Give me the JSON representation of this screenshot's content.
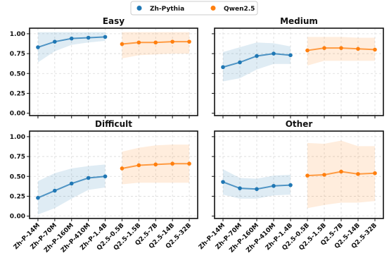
{
  "chart_data": {
    "type": "line",
    "legend": {
      "position": "top-center",
      "entries": [
        {
          "name": "Zh-Pythia",
          "color": "#1f77b4"
        },
        {
          "name": "Qwen2.5",
          "color": "#ff7f0e"
        }
      ]
    },
    "categories": [
      "Zh-P-14M",
      "Zh-P-70M",
      "Zh-P-160M",
      "Zh-P-410M",
      "Zh-P-1.4B",
      "Q2.5-0.5B",
      "Q2.5-1.5B",
      "Q2.5-7B",
      "Q2.5-14B",
      "Q2.5-32B"
    ],
    "ylim": [
      -0.03,
      1.07
    ],
    "yticks": [
      "0.00",
      "0.25",
      "0.50",
      "0.75",
      "1.00"
    ],
    "grid": true,
    "panels": [
      {
        "title": "Easy",
        "series": [
          {
            "name": "Zh-Pythia",
            "values": [
              0.83,
              0.9,
              0.94,
              0.95,
              0.96
            ],
            "lower": [
              0.64,
              0.78,
              0.86,
              0.89,
              0.91
            ],
            "upper": [
              1.02,
              1.02,
              1.02,
              1.02,
              1.02
            ]
          },
          {
            "name": "Qwen2.5",
            "values": [
              0.87,
              0.89,
              0.89,
              0.9,
              0.9
            ],
            "lower": [
              0.69,
              0.73,
              0.74,
              0.75,
              0.75
            ],
            "upper": [
              1.02,
              1.02,
              1.02,
              1.02,
              1.02
            ]
          }
        ]
      },
      {
        "title": "Medium",
        "series": [
          {
            "name": "Zh-Pythia",
            "values": [
              0.58,
              0.64,
              0.72,
              0.75,
              0.73
            ],
            "lower": [
              0.4,
              0.44,
              0.55,
              0.62,
              0.62
            ],
            "upper": [
              0.77,
              0.83,
              0.89,
              0.88,
              0.84
            ]
          },
          {
            "name": "Qwen2.5",
            "values": [
              0.79,
              0.82,
              0.82,
              0.81,
              0.8
            ],
            "lower": [
              0.6,
              0.66,
              0.66,
              0.66,
              0.66
            ],
            "upper": [
              0.96,
              0.96,
              0.96,
              0.95,
              0.95
            ]
          }
        ]
      },
      {
        "title": "Difficult",
        "series": [
          {
            "name": "Zh-Pythia",
            "values": [
              0.23,
              0.32,
              0.41,
              0.48,
              0.5
            ],
            "lower": [
              0.02,
              0.1,
              0.22,
              0.33,
              0.36
            ],
            "upper": [
              0.44,
              0.54,
              0.6,
              0.63,
              0.65
            ]
          },
          {
            "name": "Qwen2.5",
            "values": [
              0.6,
              0.64,
              0.65,
              0.66,
              0.66
            ],
            "lower": [
              0.4,
              0.42,
              0.42,
              0.42,
              0.42
            ],
            "upper": [
              0.81,
              0.86,
              0.89,
              0.9,
              0.9
            ]
          }
        ]
      },
      {
        "title": "Other",
        "series": [
          {
            "name": "Zh-Pythia",
            "values": [
              0.43,
              0.35,
              0.34,
              0.38,
              0.39
            ],
            "lower": [
              0.27,
              0.22,
              0.22,
              0.26,
              0.27
            ],
            "upper": [
              0.59,
              0.48,
              0.47,
              0.51,
              0.52
            ]
          },
          {
            "name": "Qwen2.5",
            "values": [
              0.51,
              0.52,
              0.56,
              0.53,
              0.54
            ],
            "lower": [
              0.1,
              0.14,
              0.17,
              0.17,
              0.19
            ],
            "upper": [
              0.92,
              0.91,
              0.95,
              0.88,
              0.88
            ]
          }
        ]
      }
    ]
  }
}
